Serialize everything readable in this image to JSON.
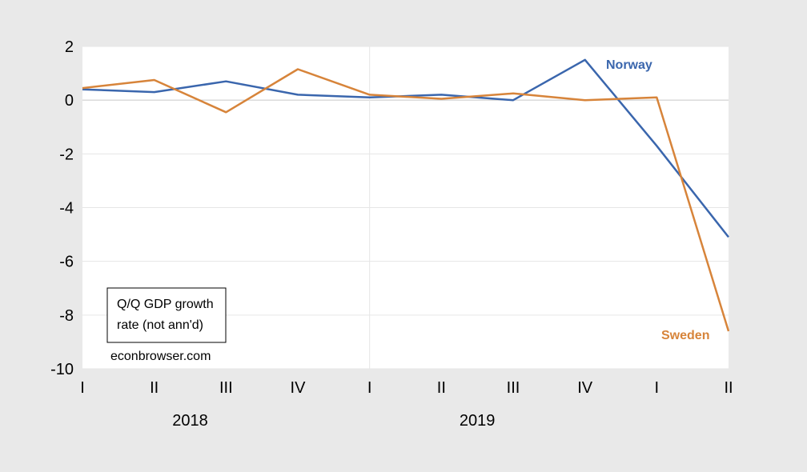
{
  "chart_data": {
    "type": "line",
    "categories": [
      "I",
      "II",
      "III",
      "IV",
      "I",
      "II",
      "III",
      "IV",
      "I",
      "II"
    ],
    "year_labels": [
      {
        "label": "2018",
        "from_index": 0,
        "to_index": 3
      },
      {
        "label": "2019",
        "from_index": 4,
        "to_index": 7
      }
    ],
    "series": [
      {
        "name": "Norway",
        "color": "#3a66ad",
        "values": [
          0.4,
          0.3,
          0.7,
          0.2,
          0.1,
          0.2,
          0.0,
          1.5,
          -1.7,
          -5.1
        ]
      },
      {
        "name": "Sweden",
        "color": "#d7843a",
        "values": [
          0.45,
          0.75,
          -0.45,
          1.15,
          0.2,
          0.05,
          0.25,
          0.0,
          0.1,
          -8.6
        ]
      }
    ],
    "ylim": [
      -10,
      2
    ],
    "yticks": [
      2,
      0,
      -2,
      -4,
      -6,
      -8,
      -10
    ],
    "grid": true,
    "annotation_box": [
      "Q/Q GDP growth",
      "rate (not ann'd)"
    ],
    "source": "econbrowser.com"
  }
}
